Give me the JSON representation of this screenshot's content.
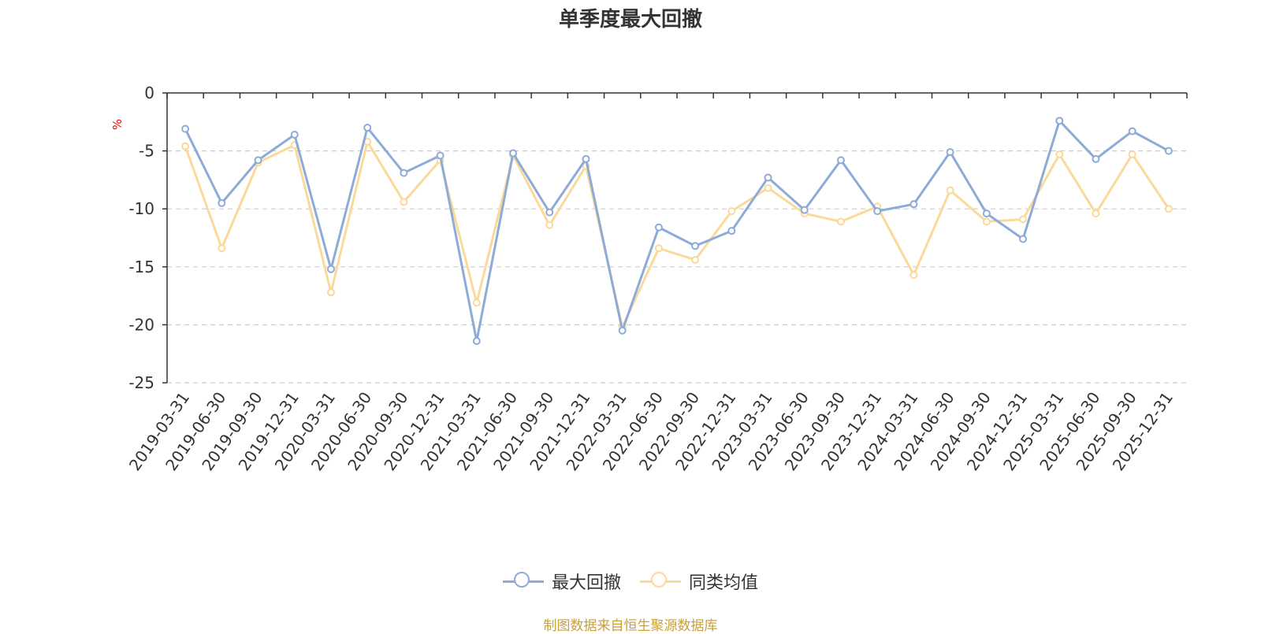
{
  "chart_data": {
    "type": "line",
    "title": "单季度最大回撤",
    "ylabel": "%",
    "xlabel": "",
    "ylim": [
      -25,
      0
    ],
    "yticks": [
      0,
      -5,
      -10,
      -15,
      -20,
      -25
    ],
    "categories": [
      "2019-03-31",
      "2019-06-30",
      "2019-09-30",
      "2019-12-31",
      "2020-03-31",
      "2020-06-30",
      "2020-09-30",
      "2020-12-31",
      "2021-03-31",
      "2021-06-30",
      "2021-09-30",
      "2021-12-31",
      "2022-03-31",
      "2022-06-30",
      "2022-09-30",
      "2022-12-31",
      "2023-03-31",
      "2023-06-30",
      "2023-09-30",
      "2023-12-31",
      "2024-03-31",
      "2024-06-30",
      "2024-09-30",
      "2024-12-31",
      "2025-03-31",
      "2025-06-30",
      "2025-09-30",
      "2025-12-31"
    ],
    "series": [
      {
        "name": "最大回撤",
        "color": "#8eabd8",
        "values": [
          -3.1,
          -9.5,
          -5.8,
          -3.6,
          -15.2,
          -3.0,
          -6.9,
          -5.4,
          -21.4,
          -5.2,
          -10.3,
          -5.7,
          -20.5,
          -11.6,
          -13.2,
          -11.9,
          -7.3,
          -10.1,
          -5.8,
          -10.2,
          -9.6,
          -5.1,
          -10.4,
          -12.6,
          -2.4,
          -5.7,
          -3.3,
          -5.0
        ]
      },
      {
        "name": "同类均值",
        "color": "#fbd99b",
        "values": [
          -4.6,
          -13.4,
          -6.0,
          -4.5,
          -17.2,
          -4.2,
          -9.4,
          -5.8,
          -18.1,
          -5.4,
          -11.4,
          -6.3,
          -20.2,
          -13.4,
          -14.4,
          -10.2,
          -8.2,
          -10.4,
          -11.1,
          -9.8,
          -15.7,
          -8.4,
          -11.1,
          -10.9,
          -5.3,
          -10.4,
          -5.3,
          -10.0
        ]
      }
    ]
  },
  "source": "制图数据来自恒生聚源数据库",
  "colors": {
    "axis": "#333333",
    "grid": "#cccccc",
    "ylabel": "#ff0000",
    "source": "#c8a03c"
  }
}
